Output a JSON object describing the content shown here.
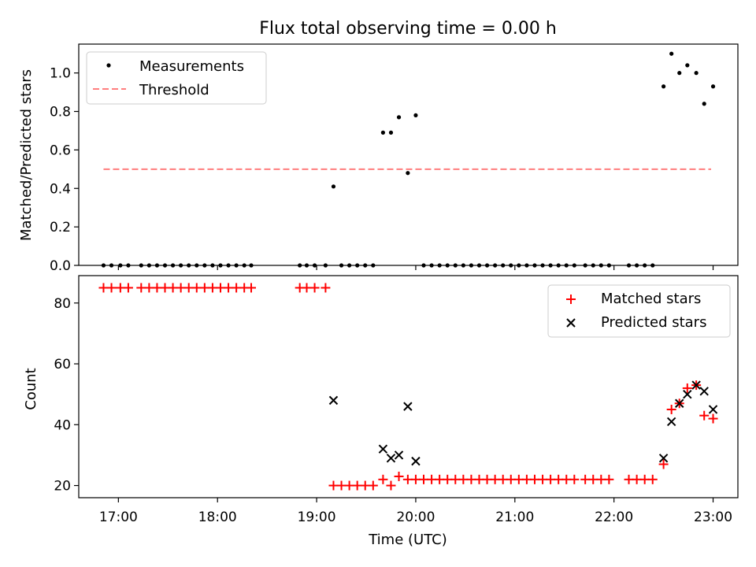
{
  "title": "Flux total observing time = 0.00 h",
  "x_axis": {
    "label": "Time (UTC)",
    "range_hours": [
      16.6,
      23.25
    ],
    "ticks": [
      17,
      18,
      19,
      20,
      21,
      22,
      23
    ],
    "tick_labels": [
      "17:00",
      "18:00",
      "19:00",
      "20:00",
      "21:00",
      "22:00",
      "23:00"
    ]
  },
  "chart_data": [
    {
      "type": "scatter",
      "panel": "top",
      "ylabel": "Matched/Predicted stars",
      "ylim": [
        0,
        1.15
      ],
      "yticks": [
        0.0,
        0.2,
        0.4,
        0.6,
        0.8,
        1.0
      ],
      "ytick_labels": [
        "0.0",
        "0.2",
        "0.4",
        "0.6",
        "0.8",
        "1.0"
      ],
      "legend_position": "top-left",
      "series": [
        {
          "name": "Measurements",
          "style": "dot",
          "color": "#000000",
          "points": [
            [
              16.85,
              0
            ],
            [
              16.93,
              0
            ],
            [
              17.02,
              0
            ],
            [
              17.1,
              0
            ],
            [
              17.23,
              0
            ],
            [
              17.31,
              0
            ],
            [
              17.39,
              0
            ],
            [
              17.47,
              0
            ],
            [
              17.55,
              0
            ],
            [
              17.63,
              0
            ],
            [
              17.71,
              0
            ],
            [
              17.79,
              0
            ],
            [
              17.87,
              0
            ],
            [
              17.95,
              0
            ],
            [
              18.03,
              0
            ],
            [
              18.11,
              0
            ],
            [
              18.19,
              0
            ],
            [
              18.27,
              0
            ],
            [
              18.34,
              0
            ],
            [
              18.83,
              0
            ],
            [
              18.9,
              0
            ],
            [
              18.98,
              0
            ],
            [
              19.09,
              0
            ],
            [
              19.17,
              0.41
            ],
            [
              19.25,
              0
            ],
            [
              19.33,
              0
            ],
            [
              19.41,
              0
            ],
            [
              19.49,
              0
            ],
            [
              19.57,
              0
            ],
            [
              19.67,
              0.69
            ],
            [
              19.75,
              0.69
            ],
            [
              19.83,
              0.77
            ],
            [
              19.92,
              0.48
            ],
            [
              20.0,
              0.78
            ],
            [
              20.08,
              0
            ],
            [
              20.16,
              0
            ],
            [
              20.24,
              0
            ],
            [
              20.32,
              0
            ],
            [
              20.4,
              0
            ],
            [
              20.48,
              0
            ],
            [
              20.56,
              0
            ],
            [
              20.64,
              0
            ],
            [
              20.72,
              0
            ],
            [
              20.8,
              0
            ],
            [
              20.88,
              0
            ],
            [
              20.96,
              0
            ],
            [
              21.04,
              0
            ],
            [
              21.12,
              0
            ],
            [
              21.2,
              0
            ],
            [
              21.28,
              0
            ],
            [
              21.36,
              0
            ],
            [
              21.44,
              0
            ],
            [
              21.52,
              0
            ],
            [
              21.6,
              0
            ],
            [
              21.71,
              0
            ],
            [
              21.79,
              0
            ],
            [
              21.87,
              0
            ],
            [
              21.95,
              0
            ],
            [
              22.15,
              0
            ],
            [
              22.23,
              0
            ],
            [
              22.31,
              0
            ],
            [
              22.39,
              0
            ],
            [
              22.5,
              0.93
            ],
            [
              22.58,
              1.1
            ],
            [
              22.66,
              1.0
            ],
            [
              22.74,
              1.04
            ],
            [
              22.83,
              1.0
            ],
            [
              22.91,
              0.84
            ],
            [
              23.0,
              0.93
            ]
          ]
        },
        {
          "name": "Threshold",
          "style": "dashed-line",
          "color": "#ff7f7f",
          "points": [
            [
              16.85,
              0.5
            ],
            [
              22.98,
              0.5
            ]
          ]
        }
      ]
    },
    {
      "type": "scatter",
      "panel": "bottom",
      "ylabel": "Count",
      "ylim": [
        16,
        89
      ],
      "yticks": [
        20,
        40,
        60,
        80
      ],
      "ytick_labels": [
        "20",
        "40",
        "60",
        "80"
      ],
      "legend_position": "top-right",
      "series": [
        {
          "name": "Matched stars",
          "style": "plus",
          "color": "#ff0000",
          "points": [
            [
              16.85,
              85
            ],
            [
              16.93,
              85
            ],
            [
              17.02,
              85
            ],
            [
              17.1,
              85
            ],
            [
              17.23,
              85
            ],
            [
              17.31,
              85
            ],
            [
              17.39,
              85
            ],
            [
              17.47,
              85
            ],
            [
              17.55,
              85
            ],
            [
              17.63,
              85
            ],
            [
              17.71,
              85
            ],
            [
              17.79,
              85
            ],
            [
              17.87,
              85
            ],
            [
              17.95,
              85
            ],
            [
              18.03,
              85
            ],
            [
              18.11,
              85
            ],
            [
              18.19,
              85
            ],
            [
              18.27,
              85
            ],
            [
              18.34,
              85
            ],
            [
              18.83,
              85
            ],
            [
              18.9,
              85
            ],
            [
              18.98,
              85
            ],
            [
              19.09,
              85
            ],
            [
              19.17,
              20
            ],
            [
              19.25,
              20
            ],
            [
              19.33,
              20
            ],
            [
              19.41,
              20
            ],
            [
              19.49,
              20
            ],
            [
              19.57,
              20
            ],
            [
              19.67,
              22
            ],
            [
              19.75,
              20
            ],
            [
              19.83,
              23
            ],
            [
              19.92,
              22
            ],
            [
              20.0,
              22
            ],
            [
              20.08,
              22
            ],
            [
              20.16,
              22
            ],
            [
              20.24,
              22
            ],
            [
              20.32,
              22
            ],
            [
              20.4,
              22
            ],
            [
              20.48,
              22
            ],
            [
              20.56,
              22
            ],
            [
              20.64,
              22
            ],
            [
              20.72,
              22
            ],
            [
              20.8,
              22
            ],
            [
              20.88,
              22
            ],
            [
              20.96,
              22
            ],
            [
              21.04,
              22
            ],
            [
              21.12,
              22
            ],
            [
              21.2,
              22
            ],
            [
              21.28,
              22
            ],
            [
              21.36,
              22
            ],
            [
              21.44,
              22
            ],
            [
              21.52,
              22
            ],
            [
              21.6,
              22
            ],
            [
              21.71,
              22
            ],
            [
              21.79,
              22
            ],
            [
              21.87,
              22
            ],
            [
              21.95,
              22
            ],
            [
              22.15,
              22
            ],
            [
              22.23,
              22
            ],
            [
              22.31,
              22
            ],
            [
              22.39,
              22
            ],
            [
              22.5,
              27
            ],
            [
              22.58,
              45
            ],
            [
              22.66,
              47
            ],
            [
              22.74,
              52
            ],
            [
              22.83,
              53
            ],
            [
              22.91,
              43
            ],
            [
              23.0,
              42
            ]
          ]
        },
        {
          "name": "Predicted stars",
          "style": "x",
          "color": "#000000",
          "points": [
            [
              19.17,
              48
            ],
            [
              19.67,
              32
            ],
            [
              19.75,
              29
            ],
            [
              19.83,
              30
            ],
            [
              19.92,
              46
            ],
            [
              20.0,
              28
            ],
            [
              22.5,
              29
            ],
            [
              22.58,
              41
            ],
            [
              22.66,
              47
            ],
            [
              22.74,
              50
            ],
            [
              22.83,
              53
            ],
            [
              22.91,
              51
            ],
            [
              23.0,
              45
            ]
          ]
        }
      ]
    }
  ]
}
